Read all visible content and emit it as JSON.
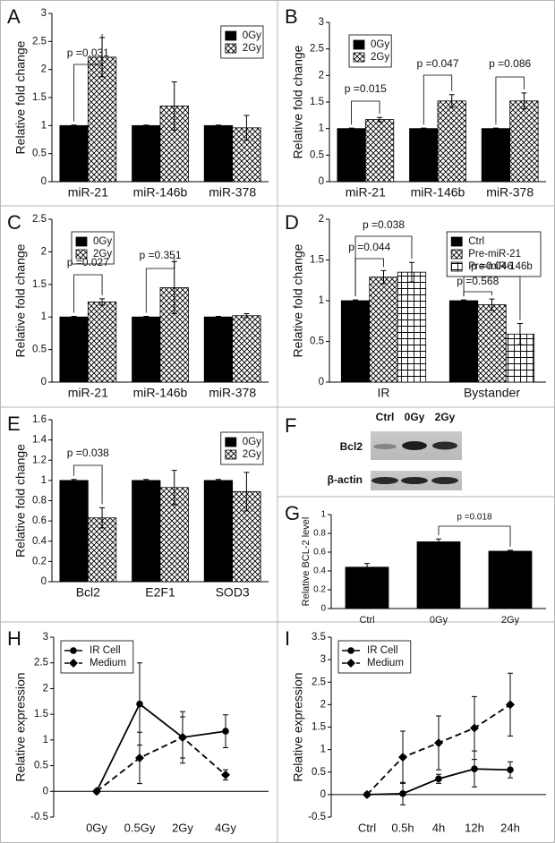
{
  "chart_data": [
    {
      "panel": "A",
      "type": "bar",
      "y_label": "Relative fold change",
      "categories": [
        "miR-21",
        "miR-146b",
        "miR-378"
      ],
      "series": [
        {
          "name": "0Gy",
          "color": "#000000",
          "pattern": "solid",
          "values": [
            1,
            1,
            1
          ],
          "errors": [
            0.01,
            0.01,
            0.01
          ]
        },
        {
          "name": "2Gy",
          "color": "#000000",
          "pattern": "crosshatch",
          "values": [
            2.22,
            1.35,
            0.96
          ],
          "errors": [
            0.35,
            0.43,
            0.22
          ]
        }
      ],
      "ylim": [
        0,
        3
      ],
      "yticks": [
        0,
        0.5,
        1,
        1.5,
        2,
        2.5,
        3
      ],
      "legend": "top-right",
      "annotations": [
        "p =0.031"
      ]
    },
    {
      "panel": "B",
      "type": "bar",
      "y_label": "Relative fold change",
      "categories": [
        "miR-21",
        "miR-146b",
        "miR-378"
      ],
      "series": [
        {
          "name": "0Gy",
          "color": "#000000",
          "pattern": "solid",
          "values": [
            1,
            1,
            1
          ],
          "errors": [
            0.01,
            0.01,
            0.01
          ]
        },
        {
          "name": "2Gy",
          "color": "#000000",
          "pattern": "crosshatch",
          "values": [
            1.17,
            1.52,
            1.52
          ],
          "errors": [
            0.04,
            0.12,
            0.15
          ]
        }
      ],
      "ylim": [
        0,
        3
      ],
      "yticks": [
        0,
        0.5,
        1,
        1.5,
        2,
        2.5,
        3
      ],
      "legend": "top-left",
      "annotations": [
        "p =0.015",
        "p =0.047",
        "p =0.086"
      ]
    },
    {
      "panel": "C",
      "type": "bar",
      "y_label": "Relative fold change",
      "categories": [
        "miR-21",
        "miR-146b",
        "miR-378"
      ],
      "series": [
        {
          "name": "0Gy",
          "color": "#000000",
          "pattern": "solid",
          "values": [
            1,
            1,
            1
          ],
          "errors": [
            0.01,
            0.01,
            0.01
          ]
        },
        {
          "name": "2Gy",
          "color": "#000000",
          "pattern": "crosshatch",
          "values": [
            1.23,
            1.45,
            1.02
          ],
          "errors": [
            0.05,
            0.4,
            0.03
          ]
        }
      ],
      "ylim": [
        0,
        2.5
      ],
      "yticks": [
        0,
        0.5,
        1,
        1.5,
        2,
        2.5
      ],
      "legend": "top-left",
      "annotations": [
        "p =0.027",
        "p =0.351"
      ]
    },
    {
      "panel": "D",
      "type": "bar",
      "y_label": "Relative fold change",
      "categories": [
        "IR",
        "Bystander"
      ],
      "series": [
        {
          "name": "Ctrl",
          "color": "#000000",
          "pattern": "solid",
          "values": [
            1,
            1
          ],
          "errors": [
            0.01,
            0.01
          ]
        },
        {
          "name": "Pre-miR-21",
          "color": "#000000",
          "pattern": "crosshatch",
          "values": [
            1.29,
            0.95
          ],
          "errors": [
            0.08,
            0.07
          ]
        },
        {
          "name": "Pre-miR-146b",
          "color": "#000000",
          "pattern": "grid",
          "values": [
            1.35,
            0.59
          ],
          "errors": [
            0.12,
            0.13
          ]
        }
      ],
      "ylim": [
        0,
        2
      ],
      "yticks": [
        0,
        0.5,
        1,
        1.5,
        2
      ],
      "legend": "top-right",
      "annotations": [
        "p =0.044",
        "p =0.038",
        "p =0.046",
        "p =0.568"
      ]
    },
    {
      "panel": "E",
      "type": "bar",
      "y_label": "Relative fold change",
      "categories": [
        "Bcl2",
        "E2F1",
        "SOD3"
      ],
      "series": [
        {
          "name": "0Gy",
          "color": "#000000",
          "pattern": "solid",
          "values": [
            1,
            1,
            1
          ],
          "errors": [
            0.01,
            0.01,
            0.01
          ]
        },
        {
          "name": "2Gy",
          "color": "#000000",
          "pattern": "crosshatch",
          "values": [
            0.63,
            0.93,
            0.89
          ],
          "errors": [
            0.1,
            0.17,
            0.19
          ]
        }
      ],
      "ylim": [
        0,
        1.6
      ],
      "yticks": [
        0,
        0.2,
        0.4,
        0.6,
        0.8,
        1,
        1.2,
        1.4,
        1.6
      ],
      "legend": "top-right",
      "annotations": [
        "p =0.038"
      ]
    },
    {
      "panel": "G",
      "type": "bar",
      "y_label": "Relative BCL-2 level",
      "categories": [
        "Ctrl",
        "0Gy",
        "2Gy"
      ],
      "series": [
        {
          "name": null,
          "color": "#000000",
          "pattern": "solid",
          "values": [
            0.44,
            0.71,
            0.61
          ],
          "errors": [
            0.04,
            0.03,
            0.01
          ]
        }
      ],
      "ylim": [
        0,
        1
      ],
      "yticks": [
        0,
        0.2,
        0.4,
        0.6,
        0.8,
        1
      ],
      "legend": null,
      "annotations": [
        "p =0.018"
      ]
    },
    {
      "panel": "H",
      "type": "line",
      "y_label": "Relative expression",
      "categories": [
        "0Gy",
        "0.5Gy",
        "2Gy",
        "4Gy"
      ],
      "series": [
        {
          "name": "IR Cell",
          "color": "#000000",
          "line_style": "solid",
          "marker": "circle",
          "values": [
            0,
            1.7,
            1.05,
            1.17
          ],
          "errors": [
            0,
            0.8,
            0.5,
            0.32
          ]
        },
        {
          "name": "Medium",
          "color": "#000000",
          "line_style": "dashed",
          "marker": "diamond",
          "values": [
            0,
            0.65,
            1.05,
            0.32
          ],
          "errors": [
            0,
            0.5,
            0.4,
            0.1
          ]
        }
      ],
      "ylim": [
        -0.5,
        3
      ],
      "yticks": [
        -0.5,
        0,
        0.5,
        1,
        1.5,
        2,
        2.5,
        3
      ],
      "legend": "top-left",
      "annotations": []
    },
    {
      "panel": "I",
      "type": "line",
      "y_label": "Relative expression",
      "categories": [
        "Ctrl",
        "0.5h",
        "4h",
        "12h",
        "24h"
      ],
      "series": [
        {
          "name": "IR Cell",
          "color": "#000000",
          "line_style": "solid",
          "marker": "circle",
          "values": [
            0,
            0.02,
            0.35,
            0.57,
            0.55
          ],
          "errors": [
            0,
            0.25,
            0.1,
            0.4,
            0.18
          ]
        },
        {
          "name": "Medium",
          "color": "#000000",
          "line_style": "dashed",
          "marker": "diamond",
          "values": [
            0,
            0.83,
            1.15,
            1.48,
            2.0
          ],
          "errors": [
            0,
            0.58,
            0.6,
            0.7,
            0.7
          ]
        }
      ],
      "ylim": [
        -0.5,
        3.5
      ],
      "yticks": [
        -0.5,
        0,
        0.5,
        1,
        1.5,
        2,
        2.5,
        3,
        3.5
      ],
      "legend": "top-left",
      "annotations": []
    }
  ],
  "blot": {
    "panel": "F",
    "lanes": [
      "Ctrl",
      "0Gy",
      "2Gy"
    ],
    "rows": [
      "Bcl2",
      "β-actin"
    ]
  }
}
